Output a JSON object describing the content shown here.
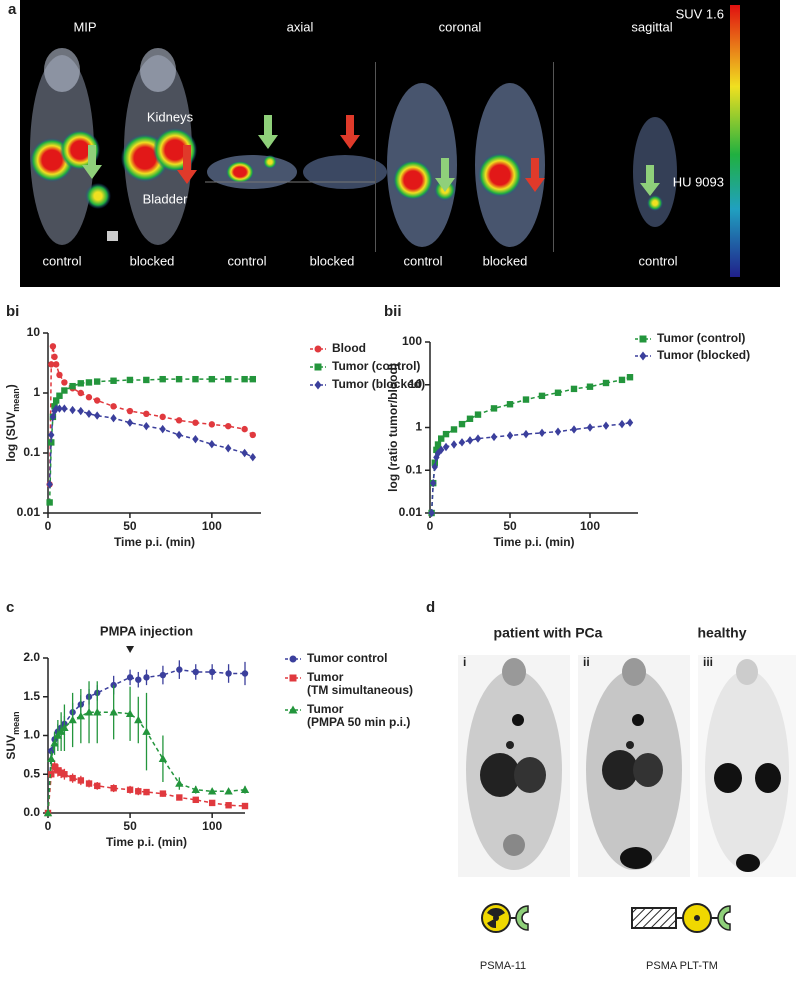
{
  "panel_labels": [
    "a",
    "bi",
    "bii",
    "c",
    "d"
  ],
  "panel_a": {
    "views": [
      "MIP",
      "axial",
      "coronal",
      "sagittal"
    ],
    "scale_top": "SUV 1.6",
    "scale_bottom": "HU 9093",
    "organs": [
      "Kidneys",
      "Bladder"
    ],
    "conditions": [
      "control",
      "blocked",
      "control",
      "blocked",
      "control",
      "blocked",
      "control"
    ]
  },
  "chart_data": [
    {
      "type": "line",
      "yscale": "log",
      "xlabel": "Time p.i. (min)",
      "ylabel": "log (SUV",
      "ylabel_sub": "mean",
      "ylabel_end": ")",
      "xlim": [
        0,
        130
      ],
      "xticks": [
        0,
        50,
        100
      ],
      "ylim": [
        0.01,
        10
      ],
      "yticks": [
        0.01,
        0.1,
        1,
        10
      ],
      "x": [
        1,
        2,
        3,
        4,
        5,
        7,
        10,
        15,
        20,
        25,
        30,
        40,
        50,
        60,
        70,
        80,
        90,
        100,
        110,
        120,
        125
      ],
      "series": [
        {
          "name": "Blood",
          "color": "#e0393e",
          "marker": "circle",
          "values": [
            0.03,
            3,
            6,
            4,
            3,
            2,
            1.5,
            1.2,
            1,
            0.85,
            0.75,
            0.6,
            0.5,
            0.45,
            0.4,
            0.35,
            0.32,
            0.3,
            0.28,
            0.25,
            0.2
          ]
        },
        {
          "name": "Tumor (control)",
          "color": "#23953c",
          "marker": "square",
          "values": [
            0.015,
            0.15,
            0.4,
            0.6,
            0.75,
            0.9,
            1.1,
            1.3,
            1.45,
            1.5,
            1.55,
            1.6,
            1.65,
            1.65,
            1.7,
            1.7,
            1.7,
            1.7,
            1.7,
            1.7,
            1.7
          ]
        },
        {
          "name": "Tumor (blocked)",
          "color": "#3b3f9c",
          "marker": "diamond",
          "values": [
            0.03,
            0.2,
            0.4,
            0.5,
            0.55,
            0.55,
            0.55,
            0.52,
            0.5,
            0.45,
            0.42,
            0.38,
            0.32,
            0.28,
            0.25,
            0.2,
            0.17,
            0.14,
            0.12,
            0.1,
            0.085
          ]
        }
      ]
    },
    {
      "type": "line",
      "yscale": "log",
      "xlabel": "Time p.i. (min)",
      "ylabel": "log (ratio tumor/blood)",
      "xlim": [
        0,
        130
      ],
      "xticks": [
        0,
        50,
        100
      ],
      "ylim": [
        0.01,
        100
      ],
      "yticks": [
        0.01,
        0.1,
        1,
        10,
        100
      ],
      "x": [
        1,
        2,
        3,
        4,
        5,
        7,
        10,
        15,
        20,
        25,
        30,
        40,
        50,
        60,
        70,
        80,
        90,
        100,
        110,
        120,
        125
      ],
      "series": [
        {
          "name": "Tumor (control)",
          "color": "#23953c",
          "marker": "square",
          "values": [
            0.01,
            0.05,
            0.15,
            0.3,
            0.4,
            0.55,
            0.7,
            0.9,
            1.2,
            1.6,
            2,
            2.8,
            3.5,
            4.5,
            5.5,
            6.5,
            8,
            9,
            11,
            13,
            15
          ]
        },
        {
          "name": "Tumor (blocked)",
          "color": "#3b3f9c",
          "marker": "diamond",
          "values": [
            0.01,
            0.05,
            0.12,
            0.2,
            0.25,
            0.3,
            0.35,
            0.4,
            0.45,
            0.5,
            0.55,
            0.6,
            0.65,
            0.7,
            0.75,
            0.8,
            0.9,
            1,
            1.1,
            1.2,
            1.3
          ]
        }
      ]
    },
    {
      "type": "line",
      "title": "PMPA injection",
      "xlabel": "Time p.i. (min)",
      "ylabel": "SUV",
      "ylabel_sub": "mean",
      "xlim": [
        0,
        120
      ],
      "xticks": [
        0,
        50,
        100
      ],
      "ylim": [
        0,
        2
      ],
      "yticks": [
        {
          "value": 0,
          "label": "0.0"
        },
        {
          "value": 0.5,
          "label": "0.5"
        },
        {
          "value": 1,
          "label": "1.0"
        },
        {
          "value": 1.5,
          "label": "1.5"
        },
        {
          "value": 2,
          "label": "2.0"
        }
      ],
      "marker_x": 50,
      "x": [
        0,
        2,
        4,
        6,
        8,
        10,
        15,
        20,
        25,
        30,
        40,
        50,
        55,
        60,
        70,
        80,
        90,
        100,
        110,
        120
      ],
      "series": [
        {
          "name": "Tumor control",
          "color": "#3b3f9c",
          "marker": "circle",
          "values": [
            0,
            0.8,
            0.95,
            1.05,
            1.1,
            1.15,
            1.3,
            1.4,
            1.5,
            1.55,
            1.65,
            1.75,
            1.72,
            1.75,
            1.78,
            1.85,
            1.82,
            1.82,
            1.8,
            1.8
          ],
          "errors": [
            0,
            0.05,
            0.08,
            0.1,
            0.1,
            0.1,
            0.12,
            0.12,
            0.1,
            0.1,
            0.12,
            0.1,
            0.1,
            0.1,
            0.12,
            0.12,
            0.1,
            0.1,
            0.12,
            0.15
          ]
        },
        {
          "name": "Tumor (TM simultaneous)",
          "color": "#e0393e",
          "marker": "square",
          "values": [
            0,
            0.5,
            0.6,
            0.55,
            0.52,
            0.5,
            0.45,
            0.42,
            0.38,
            0.35,
            0.32,
            0.3,
            0.28,
            0.27,
            0.25,
            0.2,
            0.17,
            0.13,
            0.1,
            0.09
          ],
          "errors": [
            0,
            0.05,
            0.08,
            0.08,
            0.07,
            0.07,
            0.06,
            0.06,
            0.05,
            0.05,
            0.05,
            0.05,
            0.05,
            0.04,
            0.04,
            0.03,
            0.03,
            0.02,
            0.02,
            0.02
          ]
        },
        {
          "name": "Tumor (PMPA 50 min p.i.)",
          "color": "#23953c",
          "marker": "triangle",
          "values": [
            0,
            0.7,
            0.9,
            1,
            1.05,
            1.1,
            1.2,
            1.25,
            1.3,
            1.3,
            1.3,
            1.28,
            1.2,
            1.05,
            0.7,
            0.38,
            0.3,
            0.28,
            0.28,
            0.3
          ],
          "errors": [
            0,
            0.1,
            0.15,
            0.2,
            0.25,
            0.3,
            0.35,
            0.35,
            0.4,
            0.4,
            0.35,
            0.35,
            0.3,
            0.5,
            0.3,
            0.08,
            0.05,
            0.03,
            0.03,
            0.05
          ]
        }
      ]
    }
  ],
  "panel_d": {
    "groups": [
      "patient with PCa",
      "healthy"
    ],
    "images": [
      "i",
      "ii",
      "iii"
    ],
    "tracers": [
      "PSMA-11",
      "PSMA PLT-TM"
    ]
  }
}
